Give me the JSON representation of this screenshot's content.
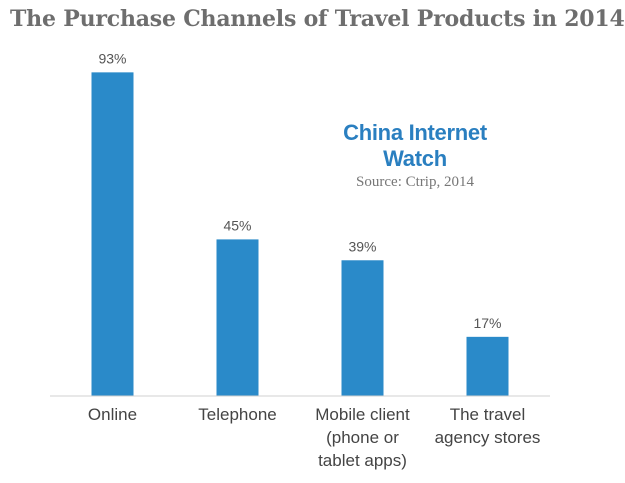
{
  "title": "The Purchase Channels of Travel Products in 2014",
  "watermark": {
    "brand": "China Internet Watch",
    "source": "Source: Ctrip, 2014"
  },
  "colors": {
    "bar": "#2a8ac9",
    "brand": "#2a7fc0",
    "axis": "#d0d0d0"
  },
  "chart_data": {
    "type": "bar",
    "title": "The Purchase Channels of Travel Products in 2014",
    "xlabel": "",
    "ylabel": "",
    "ylim": [
      0,
      100
    ],
    "grid": false,
    "categories": [
      [
        "Online"
      ],
      [
        "Telephone"
      ],
      [
        "Mobile client",
        "(phone or",
        "tablet apps)"
      ],
      [
        "The travel",
        "agency stores"
      ]
    ],
    "values": [
      93,
      45,
      39,
      17
    ],
    "value_labels": [
      "93%",
      "45%",
      "39%",
      "17%"
    ]
  }
}
